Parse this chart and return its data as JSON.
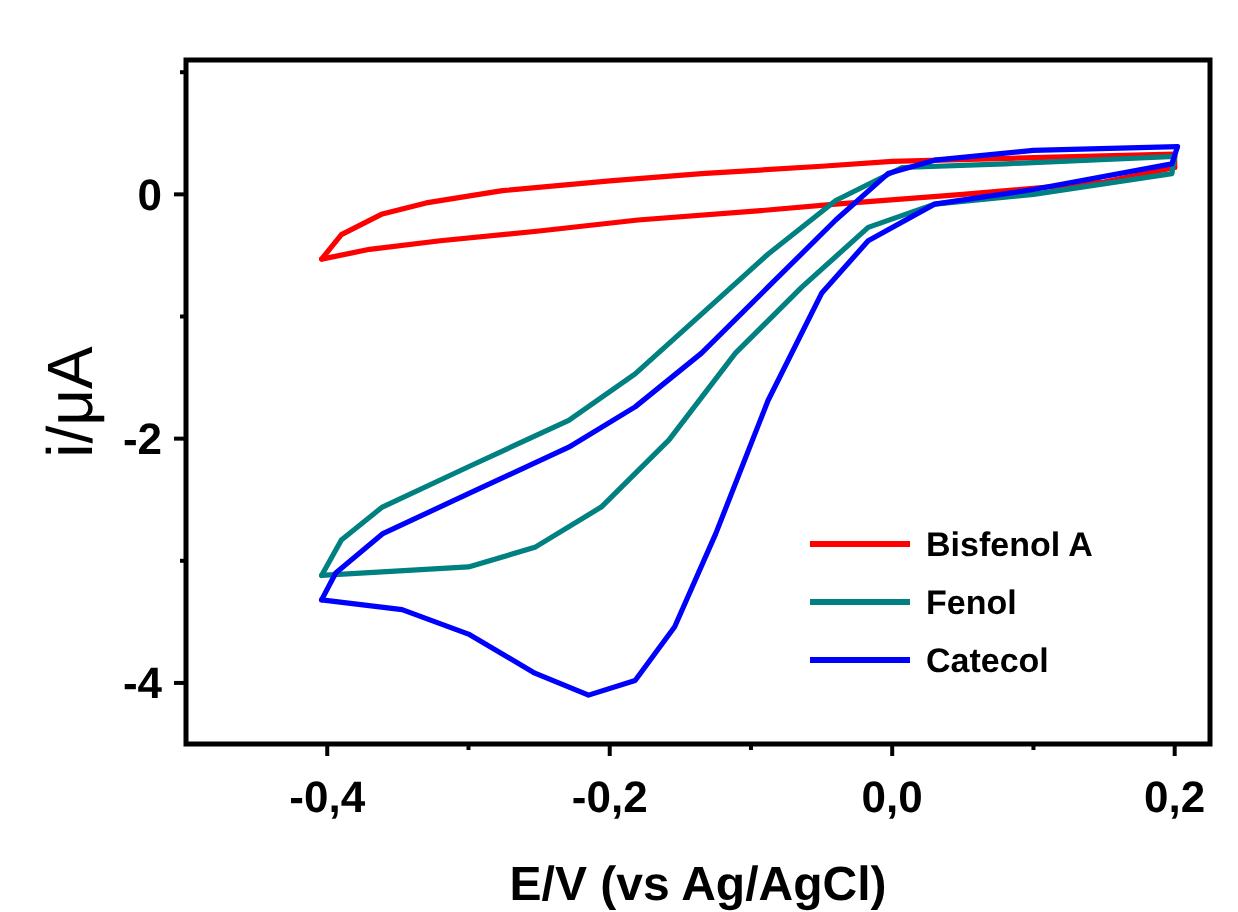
{
  "chart_data": {
    "type": "line",
    "xlabel": "E/V (vs Ag/AgCl)",
    "ylabel": "i/μA",
    "xlim": [
      -0.5,
      0.225
    ],
    "ylim": [
      -4.5,
      1.1
    ],
    "xticks": [
      {
        "value": -0.4,
        "label": "-0,4"
      },
      {
        "value": -0.3,
        "label": null
      },
      {
        "value": -0.2,
        "label": "-0,2"
      },
      {
        "value": -0.1,
        "label": null
      },
      {
        "value": 0,
        "label": "0,0"
      },
      {
        "value": 0.1,
        "label": null
      },
      {
        "value": 0.2,
        "label": "0,2"
      }
    ],
    "yticks": [
      {
        "value": -4,
        "label": "-4"
      },
      {
        "value": -3,
        "label": null
      },
      {
        "value": -2,
        "label": "-2"
      },
      {
        "value": -1,
        "label": null
      },
      {
        "value": 0,
        "label": "0"
      },
      {
        "value": 1,
        "label": null
      }
    ],
    "legend": "bottom right",
    "grid": false,
    "line_style": "solid",
    "series": [
      {
        "name": "Bisfenol A",
        "color": "#ff0000",
        "x": [
          -0.404,
          -0.37,
          -0.32,
          -0.25,
          -0.18,
          -0.1,
          -0.04,
          0.05,
          0.15,
          0.2,
          0.2,
          0.1,
          0.0,
          -0.05,
          -0.135,
          -0.2,
          -0.276,
          -0.33,
          -0.361,
          -0.39,
          -0.404
        ],
        "values": [
          -0.53,
          -0.45,
          -0.38,
          -0.3,
          -0.21,
          -0.14,
          -0.08,
          0.0,
          0.1,
          0.22,
          0.33,
          0.3,
          0.27,
          0.23,
          0.17,
          0.11,
          0.03,
          -0.07,
          -0.16,
          -0.33,
          -0.53
        ]
      },
      {
        "name": "Fenol",
        "color": "#008080",
        "x": [
          -0.404,
          -0.3,
          -0.253,
          -0.206,
          -0.158,
          -0.111,
          -0.064,
          -0.017,
          0.03,
          0.1,
          0.198,
          0.2,
          0.08,
          0.007,
          -0.04,
          -0.088,
          -0.135,
          -0.182,
          -0.229,
          -0.3,
          -0.361,
          -0.39,
          -0.404
        ],
        "values": [
          -3.12,
          -3.05,
          -2.89,
          -2.56,
          -2.01,
          -1.3,
          -0.76,
          -0.27,
          -0.08,
          0.0,
          0.17,
          0.31,
          0.25,
          0.22,
          -0.05,
          -0.49,
          -0.98,
          -1.47,
          -1.85,
          -2.23,
          -2.56,
          -2.83,
          -3.12
        ]
      },
      {
        "name": "Catecol",
        "color": "#0000ff",
        "x": [
          -0.404,
          -0.347,
          -0.3,
          -0.253,
          -0.215,
          -0.182,
          -0.154,
          -0.125,
          -0.088,
          -0.05,
          -0.017,
          0.03,
          0.1,
          0.198,
          0.202,
          0.1,
          0.03,
          -0.003,
          -0.04,
          -0.088,
          -0.135,
          -0.182,
          -0.229,
          -0.3,
          -0.361,
          -0.394,
          -0.404
        ],
        "values": [
          -3.32,
          -3.4,
          -3.6,
          -3.92,
          -4.1,
          -3.98,
          -3.54,
          -2.78,
          -1.69,
          -0.81,
          -0.38,
          -0.08,
          0.04,
          0.25,
          0.39,
          0.36,
          0.28,
          0.17,
          -0.21,
          -0.76,
          -1.3,
          -1.74,
          -2.07,
          -2.45,
          -2.78,
          -3.1,
          -3.32
        ]
      }
    ]
  }
}
